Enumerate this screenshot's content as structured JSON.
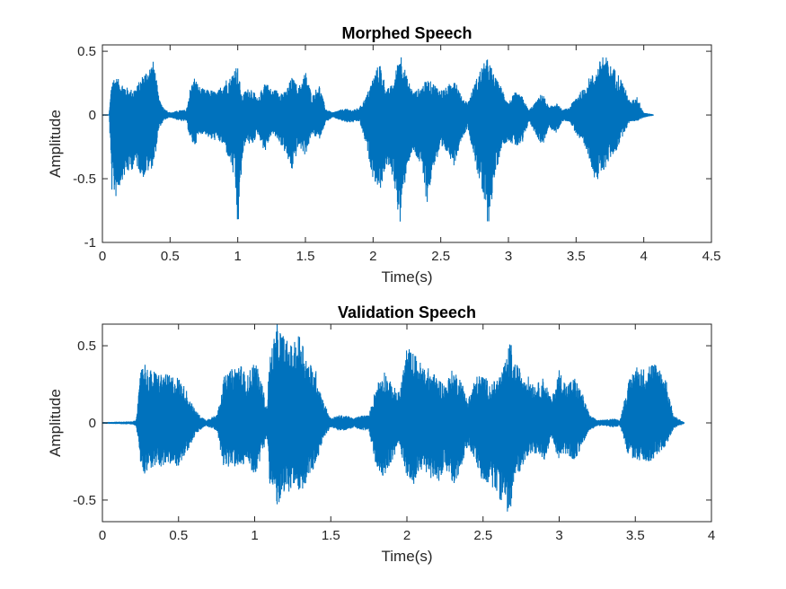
{
  "chart_data": [
    {
      "type": "line",
      "title": "Morphed Speech",
      "xlabel": "Time(s)",
      "ylabel": "Amplitude",
      "xlim": [
        0,
        4.5
      ],
      "ylim": [
        -1,
        0.55
      ],
      "xticks": [
        "0",
        "0.5",
        "1",
        "1.5",
        "2",
        "2.5",
        "3",
        "3.5",
        "4",
        "4.5"
      ],
      "yticks": [
        "0.5",
        "0",
        "-0.5",
        "-1"
      ],
      "line_color": "#0072BD",
      "grid": false,
      "duration": 4.07,
      "envelope": {
        "t": [
          0.0,
          0.05,
          0.07,
          0.1,
          0.15,
          0.2,
          0.25,
          0.3,
          0.38,
          0.42,
          0.46,
          0.5,
          0.58,
          0.62,
          0.65,
          0.68,
          0.72,
          0.76,
          0.8,
          0.85,
          0.9,
          0.95,
          0.98,
          1.0,
          1.03,
          1.06,
          1.1,
          1.15,
          1.2,
          1.25,
          1.3,
          1.35,
          1.4,
          1.45,
          1.5,
          1.55,
          1.6,
          1.65,
          1.7,
          1.75,
          1.8,
          1.85,
          1.9,
          1.95,
          2.0,
          2.05,
          2.1,
          2.15,
          2.2,
          2.25,
          2.3,
          2.35,
          2.4,
          2.45,
          2.5,
          2.55,
          2.6,
          2.65,
          2.7,
          2.75,
          2.8,
          2.85,
          2.9,
          2.95,
          3.0,
          3.05,
          3.1,
          3.15,
          3.2,
          3.25,
          3.3,
          3.35,
          3.4,
          3.45,
          3.5,
          3.55,
          3.6,
          3.65,
          3.7,
          3.75,
          3.8,
          3.85,
          3.9,
          3.95,
          4.0,
          4.07
        ],
        "upper": [
          0.005,
          0.005,
          0.3,
          0.3,
          0.25,
          0.2,
          0.22,
          0.32,
          0.43,
          0.12,
          0.05,
          0.02,
          0.04,
          0.04,
          0.22,
          0.3,
          0.22,
          0.2,
          0.2,
          0.18,
          0.28,
          0.3,
          0.4,
          0.38,
          0.15,
          0.2,
          0.22,
          0.12,
          0.28,
          0.2,
          0.2,
          0.18,
          0.3,
          0.22,
          0.35,
          0.15,
          0.25,
          0.05,
          0.02,
          0.04,
          0.05,
          0.04,
          0.06,
          0.15,
          0.3,
          0.42,
          0.2,
          0.25,
          0.52,
          0.3,
          0.18,
          0.22,
          0.28,
          0.25,
          0.2,
          0.22,
          0.32,
          0.15,
          0.1,
          0.25,
          0.38,
          0.45,
          0.3,
          0.22,
          0.1,
          0.18,
          0.15,
          0.04,
          0.1,
          0.18,
          0.06,
          0.1,
          0.04,
          0.06,
          0.15,
          0.2,
          0.3,
          0.35,
          0.5,
          0.4,
          0.35,
          0.25,
          0.1,
          0.15,
          0.02,
          0.005
        ],
        "lower": [
          -0.005,
          -0.005,
          -0.6,
          -0.65,
          -0.5,
          -0.45,
          -0.4,
          -0.5,
          -0.4,
          -0.1,
          -0.04,
          -0.02,
          -0.05,
          -0.05,
          -0.2,
          -0.25,
          -0.15,
          -0.15,
          -0.2,
          -0.2,
          -0.25,
          -0.4,
          -0.55,
          -0.95,
          -0.4,
          -0.2,
          -0.25,
          -0.15,
          -0.3,
          -0.15,
          -0.2,
          -0.3,
          -0.45,
          -0.25,
          -0.32,
          -0.15,
          -0.2,
          -0.06,
          -0.02,
          -0.04,
          -0.06,
          -0.06,
          -0.05,
          -0.25,
          -0.5,
          -0.6,
          -0.4,
          -0.5,
          -0.88,
          -0.4,
          -0.3,
          -0.4,
          -0.7,
          -0.4,
          -0.3,
          -0.3,
          -0.4,
          -0.2,
          -0.1,
          -0.35,
          -0.6,
          -0.88,
          -0.5,
          -0.25,
          -0.2,
          -0.25,
          -0.25,
          -0.05,
          -0.15,
          -0.25,
          -0.1,
          -0.15,
          -0.05,
          -0.05,
          -0.15,
          -0.25,
          -0.35,
          -0.55,
          -0.45,
          -0.35,
          -0.28,
          -0.15,
          -0.05,
          -0.05,
          -0.02,
          -0.005
        ]
      }
    },
    {
      "type": "line",
      "title": "Validation Speech",
      "xlabel": "Time(s)",
      "ylabel": "Amplitude",
      "xlim": [
        0,
        4
      ],
      "ylim": [
        -0.64,
        0.64
      ],
      "xticks": [
        "0",
        "0.5",
        "1",
        "1.5",
        "2",
        "2.5",
        "3",
        "3.5",
        "4"
      ],
      "yticks": [
        "0.5",
        "0",
        "-0.5"
      ],
      "line_color": "#0072BD",
      "grid": false,
      "duration": 3.82,
      "envelope": {
        "t": [
          0.0,
          0.2,
          0.22,
          0.24,
          0.26,
          0.3,
          0.4,
          0.5,
          0.55,
          0.6,
          0.64,
          0.68,
          0.72,
          0.75,
          0.8,
          0.85,
          0.9,
          0.95,
          1.0,
          1.05,
          1.08,
          1.1,
          1.15,
          1.2,
          1.25,
          1.3,
          1.35,
          1.4,
          1.45,
          1.5,
          1.55,
          1.6,
          1.65,
          1.7,
          1.75,
          1.8,
          1.85,
          1.9,
          1.95,
          2.0,
          2.05,
          2.1,
          2.15,
          2.2,
          2.25,
          2.3,
          2.35,
          2.4,
          2.45,
          2.5,
          2.55,
          2.6,
          2.65,
          2.68,
          2.7,
          2.75,
          2.8,
          2.85,
          2.9,
          2.95,
          3.0,
          3.05,
          3.1,
          3.15,
          3.2,
          3.25,
          3.3,
          3.35,
          3.4,
          3.45,
          3.5,
          3.55,
          3.6,
          3.65,
          3.7,
          3.75,
          3.82
        ],
        "upper": [
          0.005,
          0.01,
          0.02,
          0.2,
          0.45,
          0.35,
          0.32,
          0.3,
          0.22,
          0.1,
          0.05,
          0.02,
          0.04,
          0.05,
          0.3,
          0.35,
          0.4,
          0.3,
          0.42,
          0.25,
          0.1,
          0.45,
          0.65,
          0.55,
          0.5,
          0.6,
          0.4,
          0.35,
          0.15,
          0.03,
          0.05,
          0.05,
          0.03,
          0.05,
          0.05,
          0.25,
          0.35,
          0.25,
          0.2,
          0.5,
          0.45,
          0.38,
          0.35,
          0.3,
          0.25,
          0.35,
          0.3,
          0.15,
          0.3,
          0.32,
          0.25,
          0.3,
          0.4,
          0.55,
          0.4,
          0.35,
          0.3,
          0.25,
          0.3,
          0.15,
          0.35,
          0.25,
          0.3,
          0.2,
          0.05,
          0.02,
          0.02,
          0.03,
          0.02,
          0.25,
          0.38,
          0.35,
          0.4,
          0.38,
          0.3,
          0.05,
          0.005
        ],
        "lower": [
          -0.005,
          -0.01,
          -0.02,
          -0.15,
          -0.35,
          -0.3,
          -0.28,
          -0.28,
          -0.2,
          -0.1,
          -0.05,
          -0.02,
          -0.04,
          -0.05,
          -0.3,
          -0.28,
          -0.3,
          -0.25,
          -0.35,
          -0.2,
          -0.1,
          -0.4,
          -0.55,
          -0.5,
          -0.4,
          -0.52,
          -0.35,
          -0.3,
          -0.1,
          -0.03,
          -0.05,
          -0.05,
          -0.03,
          -0.05,
          -0.05,
          -0.3,
          -0.35,
          -0.25,
          -0.15,
          -0.35,
          -0.4,
          -0.3,
          -0.35,
          -0.4,
          -0.28,
          -0.45,
          -0.3,
          -0.15,
          -0.25,
          -0.4,
          -0.4,
          -0.48,
          -0.55,
          -0.64,
          -0.4,
          -0.3,
          -0.2,
          -0.2,
          -0.25,
          -0.1,
          -0.25,
          -0.2,
          -0.25,
          -0.15,
          -0.05,
          -0.02,
          -0.02,
          -0.03,
          -0.02,
          -0.2,
          -0.25,
          -0.25,
          -0.25,
          -0.2,
          -0.15,
          -0.04,
          -0.005
        ]
      }
    }
  ]
}
